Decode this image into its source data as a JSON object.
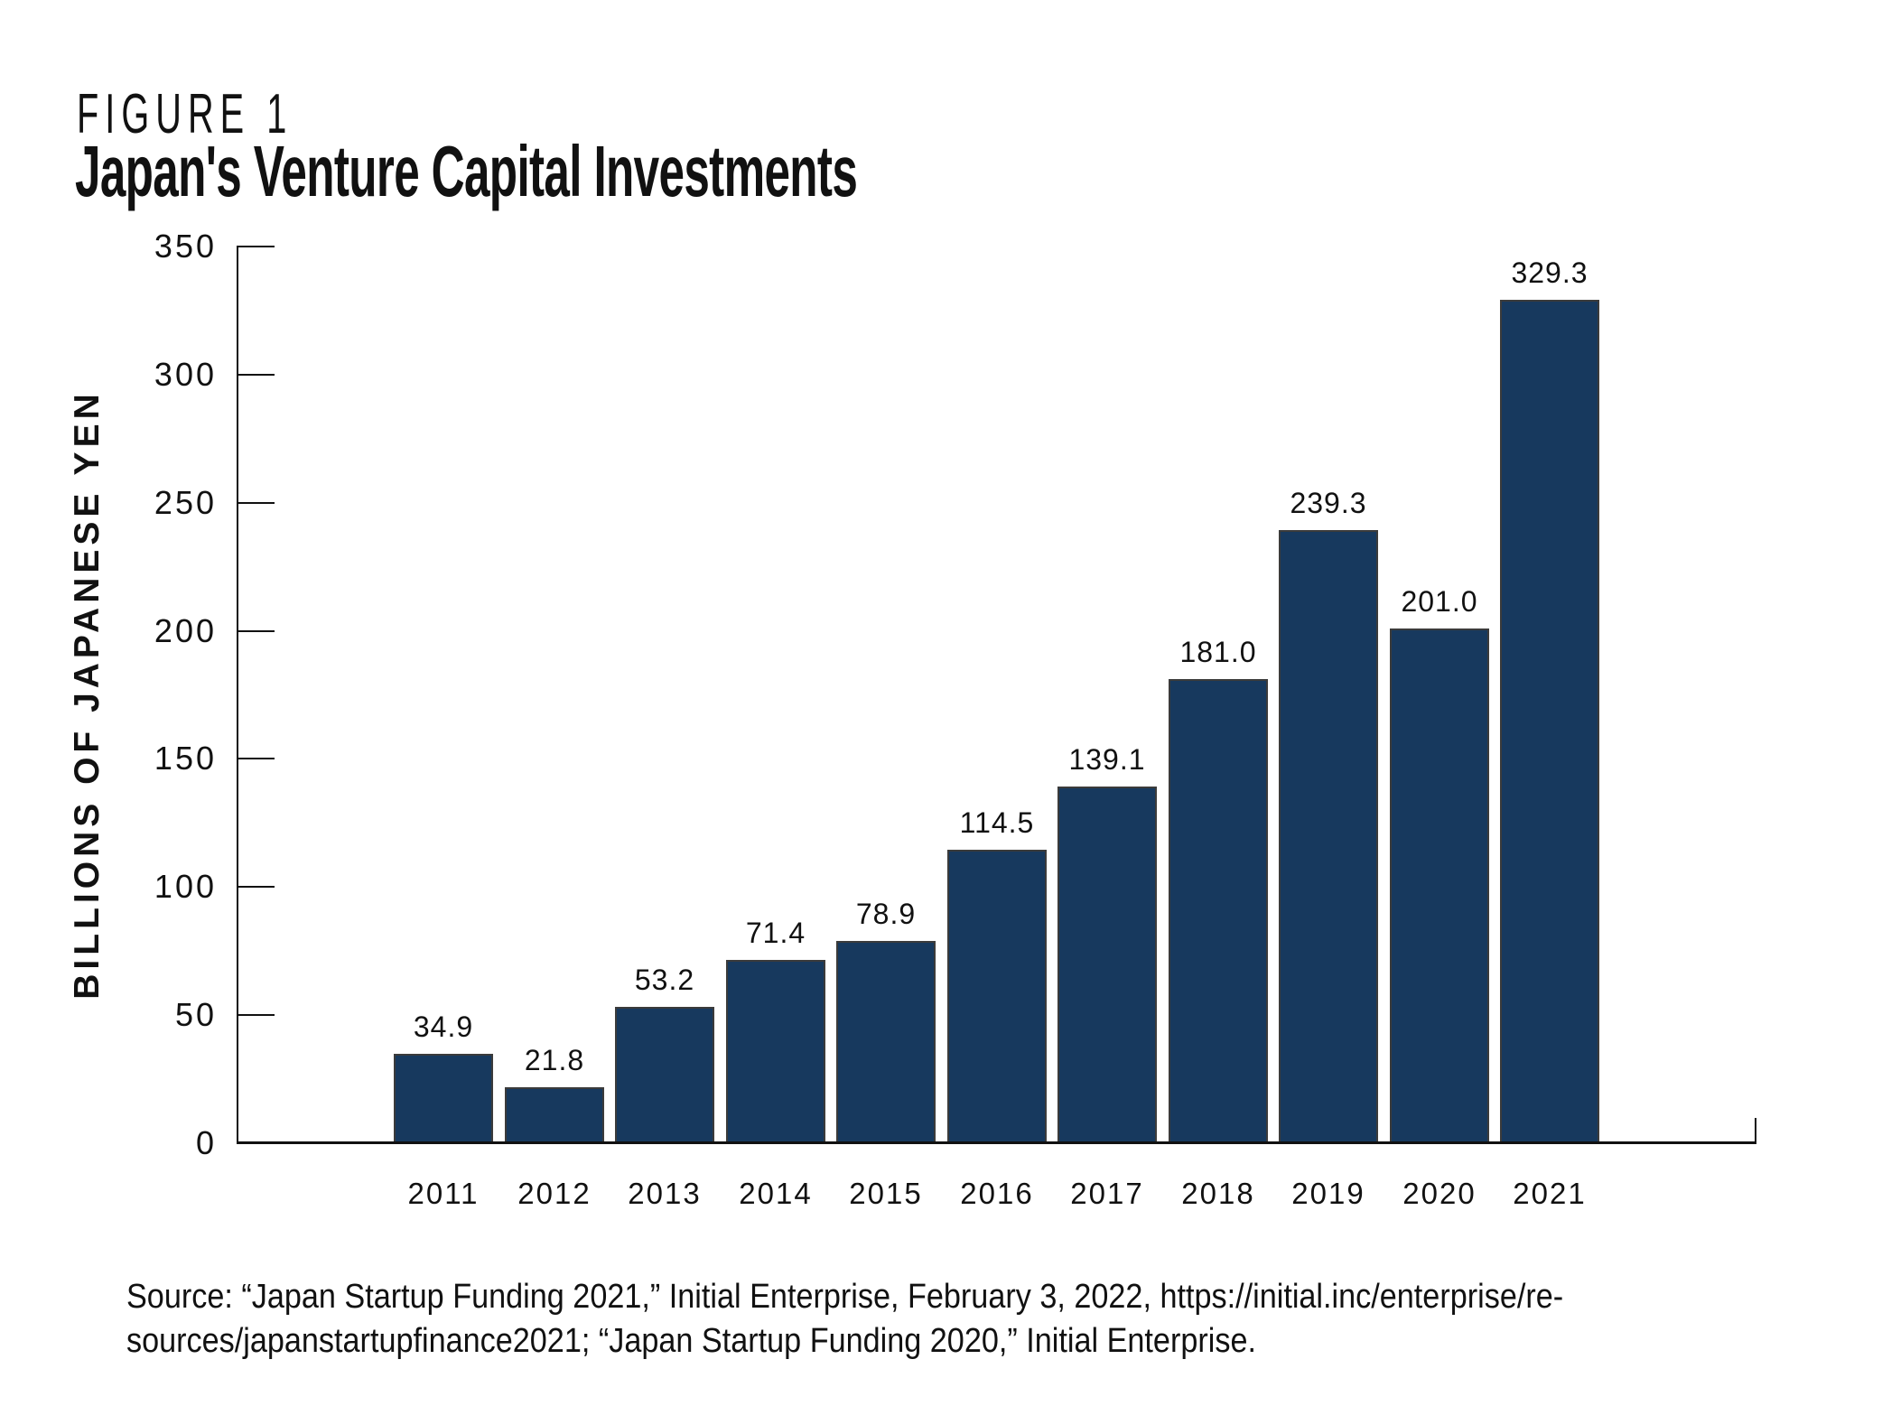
{
  "figure_label": "FIGURE 1",
  "title": "Japan's Venture Capital Investments",
  "chart_data": {
    "type": "bar",
    "title": "Japan's Venture Capital Investments",
    "categories": [
      "2011",
      "2012",
      "2013",
      "2014",
      "2015",
      "2016",
      "2017",
      "2018",
      "2019",
      "2020",
      "2021"
    ],
    "values": [
      34.9,
      21.8,
      53.2,
      71.4,
      78.9,
      114.5,
      139.1,
      181.0,
      239.3,
      201.0,
      329.3
    ],
    "value_labels": [
      "34.9",
      "21.8",
      "53.2",
      "71.4",
      "78.9",
      "114.5",
      "139.1",
      "181.0",
      "239.3",
      "201.0",
      "329.3"
    ],
    "xlabel": "",
    "ylabel": "BILLIONS OF JAPANESE YEN",
    "yticks": [
      0,
      50,
      100,
      150,
      200,
      250,
      300,
      350
    ],
    "ylim": [
      0,
      350
    ],
    "grid": false,
    "legend": false,
    "bar_color": "#17395E",
    "bar_edge_color": "#3B3B3B",
    "axis_color": "#111111"
  },
  "source": {
    "line1": "Source: “Japan Startup Funding 2021,” Initial Enterprise, February 3, 2022, https://initial.inc/enterprise/re-",
    "line2": "sources/japanstartupfinance2021; “Japan Startup Funding 2020,” Initial Enterprise."
  }
}
